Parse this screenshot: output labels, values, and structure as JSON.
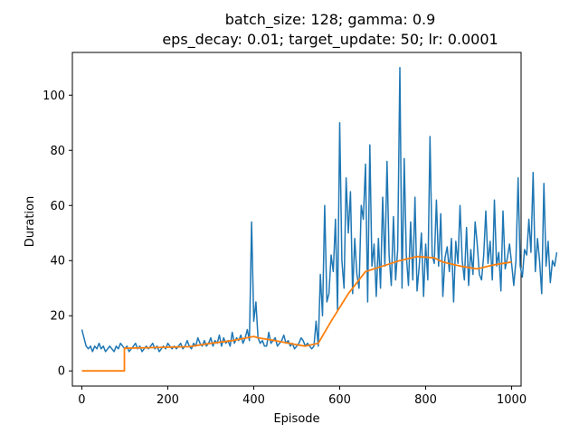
{
  "chart_data": {
    "type": "line",
    "title": "batch_size: 128; gamma: 0.9",
    "subtitle": "eps_decay: 0.01; target_update: 50; lr: 0.0001",
    "xlabel": "Episode",
    "ylabel": "Duration",
    "xlim": [
      -22,
      1022
    ],
    "ylim": [
      -5.5,
      115.5
    ],
    "grid": false,
    "x_ticks": [
      0,
      200,
      400,
      600,
      800,
      1000
    ],
    "y_ticks": [
      0,
      20,
      40,
      60,
      80,
      100
    ],
    "x_tick_labels": [
      "0",
      "200",
      "400",
      "600",
      "800",
      "1000"
    ],
    "y_tick_labels": [
      "0",
      "20",
      "40",
      "60",
      "80",
      "100"
    ],
    "series": [
      {
        "color": "#1f77b4",
        "x_start": 0,
        "x_step": 5,
        "values": [
          15,
          12,
          9,
          8,
          9,
          7,
          9,
          8,
          10,
          8,
          9,
          7,
          8,
          9,
          8,
          7,
          9,
          8,
          10,
          9,
          8,
          9,
          7,
          8,
          9,
          10,
          8,
          9,
          7,
          8,
          9,
          8,
          9,
          10,
          8,
          9,
          7,
          8,
          9,
          8,
          10,
          9,
          8,
          9,
          8,
          9,
          10,
          8,
          9,
          11,
          9,
          8,
          10,
          9,
          12,
          10,
          9,
          11,
          9,
          10,
          12,
          9,
          11,
          10,
          13,
          9,
          12,
          10,
          11,
          9,
          14,
          10,
          12,
          11,
          13,
          10,
          12,
          15,
          11,
          54,
          18,
          25,
          12,
          10,
          11,
          9,
          9,
          14,
          10,
          11,
          12,
          9,
          10,
          11,
          13,
          10,
          11,
          9,
          10,
          8,
          9,
          10,
          12,
          11,
          9,
          10,
          9,
          8,
          9,
          18,
          9,
          35,
          20,
          60,
          25,
          28,
          42,
          36,
          55,
          22,
          90,
          40,
          30,
          70,
          50,
          65,
          28,
          48,
          35,
          30,
          60,
          55,
          75,
          25,
          82,
          38,
          46,
          27,
          48,
          30,
          63,
          38,
          76,
          42,
          31,
          56,
          33,
          44,
          110,
          30,
          77,
          42,
          31,
          54,
          33,
          63,
          29,
          38,
          50,
          27,
          46,
          33,
          85,
          42,
          39,
          62,
          38,
          57,
          27,
          41,
          45,
          36,
          48,
          25,
          47,
          39,
          60,
          40,
          33,
          52,
          31,
          44,
          35,
          54,
          46,
          35,
          33,
          42,
          58,
          39,
          47,
          33,
          62,
          38,
          43,
          29,
          58,
          37,
          41,
          46,
          39,
          31,
          40,
          70,
          38,
          34,
          44,
          42,
          55,
          43,
          72,
          36,
          48,
          40,
          28,
          68,
          38,
          47,
          32,
          40,
          38,
          43
        ]
      },
      {
        "color": "#ff7f0e",
        "x": [
          0,
          99,
          99,
          150,
          200,
          250,
          300,
          350,
          400,
          410,
          450,
          500,
          520,
          550,
          580,
          620,
          660,
          700,
          740,
          780,
          820,
          840,
          880,
          920,
          960,
          1000
        ],
        "values": [
          0,
          0,
          8.2,
          8.4,
          8.6,
          8.8,
          10,
          11,
          12.5,
          12,
          11,
          9.5,
          9,
          10,
          18,
          28,
          36,
          38,
          40,
          41.5,
          41,
          39.5,
          38,
          37,
          38.5,
          39.5
        ]
      }
    ]
  }
}
